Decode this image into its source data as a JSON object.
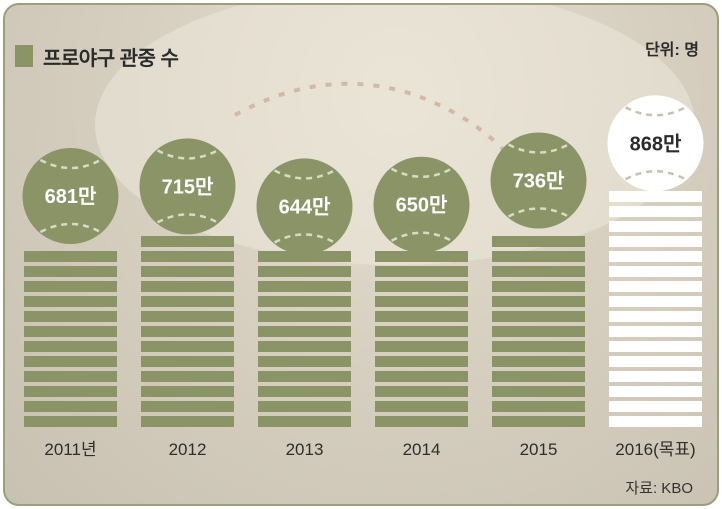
{
  "chart_data": {
    "type": "bar",
    "title": "프로야구 관중 수",
    "unit": "단위: 명",
    "source": "자료: KBO",
    "categories": [
      "2011년",
      "2012",
      "2013",
      "2014",
      "2015",
      "2016(목표)"
    ],
    "values": [
      681,
      715,
      644,
      650,
      736,
      868
    ],
    "value_labels": [
      "681만",
      "715만",
      "644만",
      "650만",
      "736만",
      "868만"
    ],
    "highlight_index": 5,
    "colors": {
      "bar": "#8a9467",
      "highlight": "#ffffff",
      "ball_text": "#ffffff",
      "highlight_text": "#2b2b2b"
    }
  }
}
